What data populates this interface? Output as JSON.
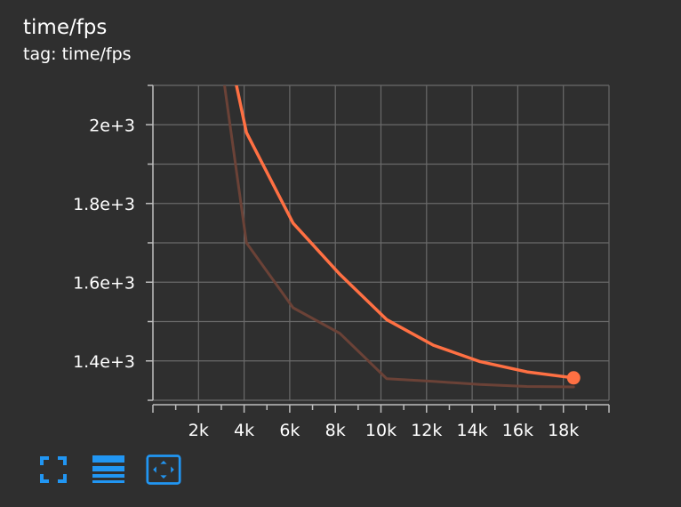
{
  "card": {
    "title": "time/fps",
    "subtitle": "tag: time/fps"
  },
  "toolbar": {
    "items": [
      {
        "icon": "fullscreen-icon"
      },
      {
        "icon": "toggle-log-scale-icon"
      },
      {
        "icon": "fit-domain-icon"
      }
    ]
  },
  "colors": {
    "background": "#2f2f2f",
    "grid": "#6a6a6a",
    "axis": "#bdbdbd",
    "smoothed": "#ff7043",
    "raw": "#6b4237",
    "toolbar_icon": "#2196f3"
  },
  "chart_data": {
    "type": "line",
    "title": "",
    "xlabel": "",
    "ylabel": "",
    "xlim": [
      0,
      20000
    ],
    "ylim": [
      1300,
      2100
    ],
    "x_ticks": [
      2000,
      4000,
      6000,
      8000,
      10000,
      12000,
      14000,
      16000,
      18000
    ],
    "x_tick_labels": [
      "2k",
      "4k",
      "6k",
      "8k",
      "10k",
      "12k",
      "14k",
      "16k",
      "18k"
    ],
    "y_ticks": [
      1400,
      1600,
      1800,
      2000
    ],
    "y_tick_labels": [
      "1.4e+3",
      "1.6e+3",
      "1.8e+3",
      "2e+3"
    ],
    "grid": true,
    "series": [
      {
        "role": "raw",
        "x": [
          2900,
          4100,
          6150,
          8200,
          10250,
          12300,
          14350,
          16400,
          18450
        ],
        "y": [
          2200,
          1700,
          1535,
          1470,
          1355,
          1348,
          1340,
          1335,
          1334
        ]
      },
      {
        "role": "smoothed",
        "x": [
          3300,
          4100,
          6150,
          8200,
          10250,
          12300,
          14350,
          16400,
          18450
        ],
        "y": [
          2200,
          1980,
          1750,
          1620,
          1505,
          1440,
          1398,
          1372,
          1357
        ]
      }
    ]
  }
}
